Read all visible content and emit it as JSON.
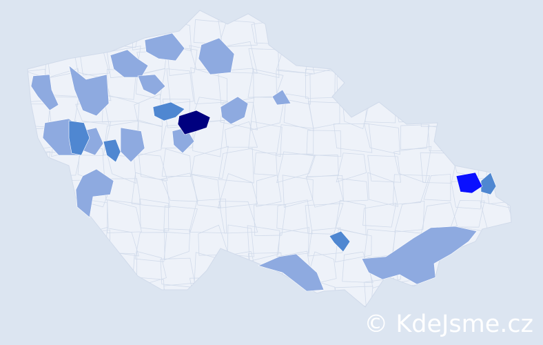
{
  "watermark": "© KdeJsme.cz",
  "colors": {
    "background": "#dce5f1",
    "country_fill": "#eef2f9",
    "border": "#d0daea",
    "level_1": "#8eaae0",
    "level_2": "#4f87d1",
    "level_3": "#0a10ff",
    "level_4": "#00007f"
  },
  "highlighted_districts": [
    {
      "level": 1
    },
    {
      "level": 1
    },
    {
      "level": 1
    },
    {
      "level": 1
    },
    {
      "level": 1
    },
    {
      "level": 1
    },
    {
      "level": 1
    },
    {
      "level": 1
    },
    {
      "level": 1
    },
    {
      "level": 1
    },
    {
      "level": 1
    },
    {
      "level": 1
    },
    {
      "level": 1
    },
    {
      "level": 2
    },
    {
      "level": 2
    },
    {
      "level": 2
    },
    {
      "level": 2
    },
    {
      "level": 2
    },
    {
      "level": 3
    },
    {
      "level": 4
    }
  ]
}
